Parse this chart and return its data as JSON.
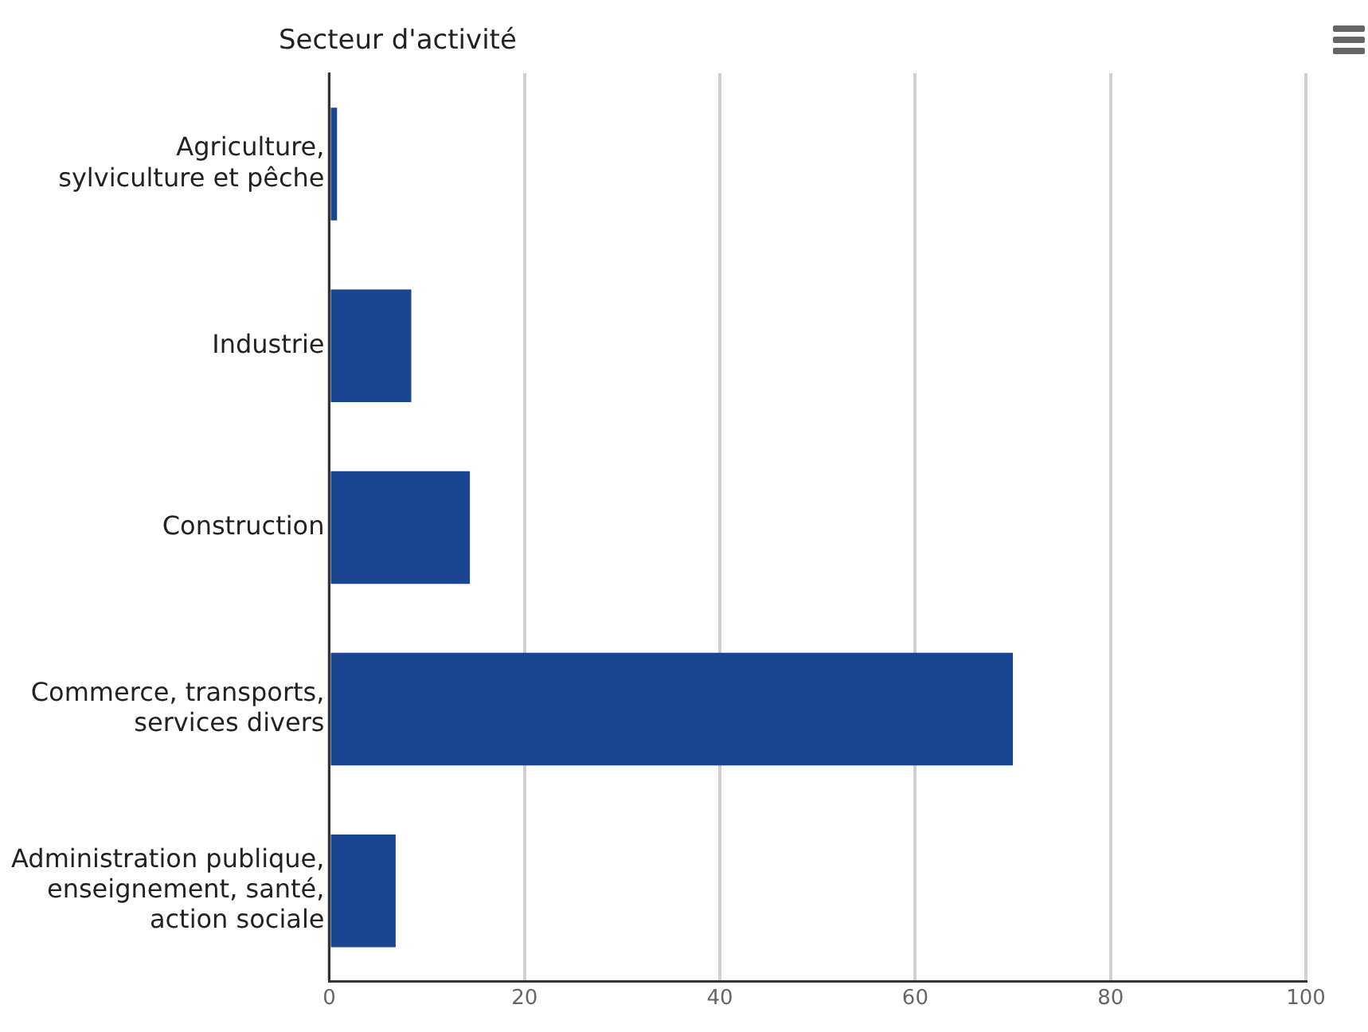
{
  "chart_data": {
    "type": "bar",
    "orientation": "horizontal",
    "ylabel": "Secteur d'activité",
    "categories": [
      "Agriculture,\nsylviculture et pêche",
      "Industrie",
      "Construction",
      "Commerce, transports,\nservices divers",
      "Administration publique,\nenseignement, santé,\naction sociale"
    ],
    "values": [
      0.8,
      8.4,
      14.4,
      70.0,
      6.8
    ],
    "color": "#1a4591",
    "xlim": [
      0,
      100
    ],
    "xticks": [
      0,
      20,
      40,
      60,
      80,
      100
    ],
    "grid": "x",
    "legend": false
  }
}
